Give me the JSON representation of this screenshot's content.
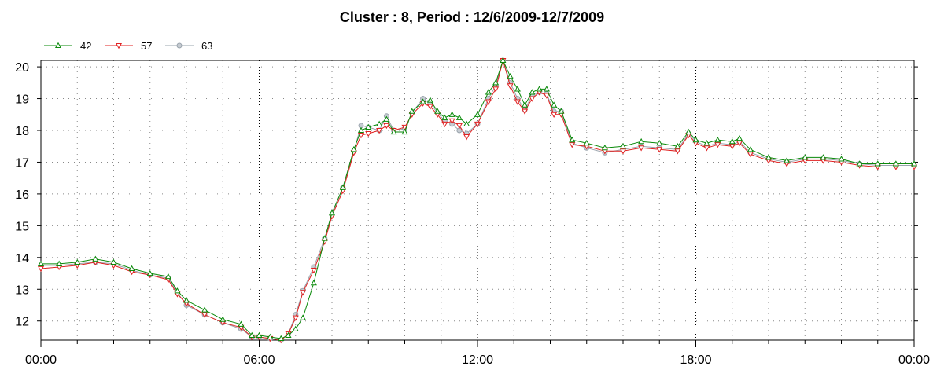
{
  "chart_data": {
    "type": "line",
    "title": "Cluster : 8, Period : 12/6/2009-12/7/2009",
    "xlabel": "",
    "ylabel": "",
    "xlim": [
      0,
      24
    ],
    "ylim": [
      11.4,
      20.2
    ],
    "x_ticks": [
      {
        "value": 0,
        "label": "00:00"
      },
      {
        "value": 6,
        "label": "06:00"
      },
      {
        "value": 12,
        "label": "12:00"
      },
      {
        "value": 18,
        "label": "18:00"
      },
      {
        "value": 24,
        "label": "00:00"
      }
    ],
    "y_ticks": [
      12,
      13,
      14,
      15,
      16,
      17,
      18,
      19,
      20
    ],
    "grid": "dotted",
    "legend_position": "top-left",
    "series": [
      {
        "name": "42",
        "color": "#0a8a0a",
        "marker": "triangle-up",
        "points": [
          [
            0,
            13.8
          ],
          [
            0.5,
            13.8
          ],
          [
            1,
            13.85
          ],
          [
            1.5,
            13.95
          ],
          [
            2,
            13.85
          ],
          [
            2.5,
            13.65
          ],
          [
            3,
            13.5
          ],
          [
            3.5,
            13.4
          ],
          [
            3.75,
            12.95
          ],
          [
            4,
            12.65
          ],
          [
            4.5,
            12.35
          ],
          [
            5,
            12.05
          ],
          [
            5.5,
            11.9
          ],
          [
            5.8,
            11.55
          ],
          [
            6,
            11.55
          ],
          [
            6.3,
            11.5
          ],
          [
            6.6,
            11.45
          ],
          [
            6.8,
            11.55
          ],
          [
            7,
            11.75
          ],
          [
            7.2,
            12.1
          ],
          [
            7.5,
            13.2
          ],
          [
            7.8,
            14.6
          ],
          [
            8,
            15.4
          ],
          [
            8.3,
            16.2
          ],
          [
            8.6,
            17.4
          ],
          [
            8.8,
            18.0
          ],
          [
            9,
            18.1
          ],
          [
            9.3,
            18.2
          ],
          [
            9.5,
            18.35
          ],
          [
            9.7,
            17.95
          ],
          [
            10,
            17.95
          ],
          [
            10.2,
            18.6
          ],
          [
            10.5,
            18.9
          ],
          [
            10.7,
            18.95
          ],
          [
            10.9,
            18.6
          ],
          [
            11.1,
            18.4
          ],
          [
            11.3,
            18.5
          ],
          [
            11.5,
            18.4
          ],
          [
            11.7,
            18.2
          ],
          [
            12,
            18.5
          ],
          [
            12.3,
            19.2
          ],
          [
            12.5,
            19.5
          ],
          [
            12.7,
            20.2
          ],
          [
            12.9,
            19.7
          ],
          [
            13.1,
            19.3
          ],
          [
            13.3,
            18.8
          ],
          [
            13.5,
            19.2
          ],
          [
            13.7,
            19.3
          ],
          [
            13.9,
            19.3
          ],
          [
            14.1,
            18.8
          ],
          [
            14.3,
            18.6
          ],
          [
            14.6,
            17.7
          ],
          [
            15,
            17.6
          ],
          [
            15.5,
            17.45
          ],
          [
            16,
            17.5
          ],
          [
            16.5,
            17.65
          ],
          [
            17,
            17.6
          ],
          [
            17.5,
            17.5
          ],
          [
            17.8,
            17.95
          ],
          [
            18,
            17.7
          ],
          [
            18.3,
            17.6
          ],
          [
            18.6,
            17.7
          ],
          [
            19,
            17.65
          ],
          [
            19.2,
            17.75
          ],
          [
            19.5,
            17.4
          ],
          [
            20,
            17.15
          ],
          [
            20.5,
            17.05
          ],
          [
            21,
            17.15
          ],
          [
            21.5,
            17.15
          ],
          [
            22,
            17.1
          ],
          [
            22.5,
            16.95
          ],
          [
            23,
            16.95
          ],
          [
            23.5,
            16.95
          ],
          [
            24,
            16.95
          ]
        ]
      },
      {
        "name": "57",
        "color": "#e02020",
        "marker": "triangle-down",
        "points": [
          [
            0,
            13.65
          ],
          [
            0.5,
            13.7
          ],
          [
            1,
            13.75
          ],
          [
            1.5,
            13.85
          ],
          [
            2,
            13.75
          ],
          [
            2.5,
            13.55
          ],
          [
            3,
            13.45
          ],
          [
            3.5,
            13.3
          ],
          [
            3.75,
            12.85
          ],
          [
            4,
            12.55
          ],
          [
            4.5,
            12.2
          ],
          [
            5,
            11.95
          ],
          [
            5.5,
            11.8
          ],
          [
            5.8,
            11.5
          ],
          [
            6,
            11.5
          ],
          [
            6.3,
            11.45
          ],
          [
            6.6,
            11.4
          ],
          [
            6.8,
            11.6
          ],
          [
            7,
            12.1
          ],
          [
            7.2,
            12.9
          ],
          [
            7.5,
            13.6
          ],
          [
            7.8,
            14.5
          ],
          [
            8,
            15.3
          ],
          [
            8.3,
            16.1
          ],
          [
            8.6,
            17.3
          ],
          [
            8.8,
            17.85
          ],
          [
            9,
            17.9
          ],
          [
            9.3,
            18.0
          ],
          [
            9.5,
            18.15
          ],
          [
            9.7,
            18.0
          ],
          [
            10,
            18.1
          ],
          [
            10.2,
            18.5
          ],
          [
            10.5,
            18.85
          ],
          [
            10.7,
            18.75
          ],
          [
            10.9,
            18.5
          ],
          [
            11.1,
            18.2
          ],
          [
            11.3,
            18.3
          ],
          [
            11.5,
            18.15
          ],
          [
            11.7,
            17.8
          ],
          [
            12,
            18.2
          ],
          [
            12.3,
            18.9
          ],
          [
            12.5,
            19.3
          ],
          [
            12.7,
            20.2
          ],
          [
            12.9,
            19.4
          ],
          [
            13.1,
            18.9
          ],
          [
            13.3,
            18.6
          ],
          [
            13.5,
            19.0
          ],
          [
            13.7,
            19.2
          ],
          [
            13.9,
            19.1
          ],
          [
            14.1,
            18.5
          ],
          [
            14.3,
            18.5
          ],
          [
            14.6,
            17.55
          ],
          [
            15,
            17.5
          ],
          [
            15.5,
            17.35
          ],
          [
            16,
            17.35
          ],
          [
            16.5,
            17.45
          ],
          [
            17,
            17.4
          ],
          [
            17.5,
            17.35
          ],
          [
            17.8,
            17.85
          ],
          [
            18,
            17.6
          ],
          [
            18.3,
            17.45
          ],
          [
            18.6,
            17.55
          ],
          [
            19,
            17.5
          ],
          [
            19.2,
            17.6
          ],
          [
            19.5,
            17.25
          ],
          [
            20,
            17.05
          ],
          [
            20.5,
            16.95
          ],
          [
            21,
            17.05
          ],
          [
            21.5,
            17.05
          ],
          [
            22,
            17.0
          ],
          [
            22.5,
            16.9
          ],
          [
            23,
            16.85
          ],
          [
            23.5,
            16.85
          ],
          [
            24,
            16.85
          ]
        ]
      },
      {
        "name": "63",
        "color": "#9aa4ad",
        "marker": "circle",
        "points": [
          [
            0,
            13.75
          ],
          [
            0.5,
            13.75
          ],
          [
            1,
            13.8
          ],
          [
            1.5,
            13.85
          ],
          [
            2,
            13.8
          ],
          [
            2.5,
            13.6
          ],
          [
            3,
            13.45
          ],
          [
            3.5,
            13.35
          ],
          [
            3.75,
            12.9
          ],
          [
            4,
            12.5
          ],
          [
            4.5,
            12.2
          ],
          [
            5,
            11.95
          ],
          [
            5.5,
            11.75
          ],
          [
            5.8,
            11.5
          ],
          [
            6,
            11.5
          ],
          [
            6.3,
            11.45
          ],
          [
            6.6,
            11.4
          ],
          [
            6.8,
            11.6
          ],
          [
            7,
            12.2
          ],
          [
            7.2,
            12.95
          ],
          [
            7.5,
            13.7
          ],
          [
            7.8,
            14.6
          ],
          [
            8,
            15.35
          ],
          [
            8.3,
            16.2
          ],
          [
            8.6,
            17.35
          ],
          [
            8.8,
            18.15
          ],
          [
            9,
            18.1
          ],
          [
            9.3,
            18.0
          ],
          [
            9.5,
            18.45
          ],
          [
            9.7,
            18.0
          ],
          [
            10,
            18.05
          ],
          [
            10.2,
            18.55
          ],
          [
            10.5,
            19.0
          ],
          [
            10.7,
            18.85
          ],
          [
            10.9,
            18.55
          ],
          [
            11.1,
            18.3
          ],
          [
            11.3,
            18.2
          ],
          [
            11.5,
            18.0
          ],
          [
            11.7,
            17.9
          ],
          [
            12,
            18.2
          ],
          [
            12.3,
            19.0
          ],
          [
            12.5,
            19.4
          ],
          [
            12.7,
            20.2
          ],
          [
            12.9,
            19.5
          ],
          [
            13.1,
            19.0
          ],
          [
            13.3,
            18.65
          ],
          [
            13.5,
            19.1
          ],
          [
            13.7,
            19.2
          ],
          [
            13.9,
            19.15
          ],
          [
            14.1,
            18.6
          ],
          [
            14.3,
            18.6
          ],
          [
            14.6,
            17.6
          ],
          [
            15,
            17.45
          ],
          [
            15.5,
            17.3
          ],
          [
            16,
            17.4
          ],
          [
            16.5,
            17.5
          ],
          [
            17,
            17.45
          ],
          [
            17.5,
            17.4
          ],
          [
            17.8,
            17.9
          ],
          [
            18,
            17.65
          ],
          [
            18.3,
            17.5
          ],
          [
            18.6,
            17.6
          ],
          [
            19,
            17.55
          ],
          [
            19.2,
            17.65
          ],
          [
            19.5,
            17.3
          ],
          [
            20,
            17.1
          ],
          [
            20.5,
            17.0
          ],
          [
            21,
            17.1
          ],
          [
            21.5,
            17.1
          ],
          [
            22,
            17.05
          ],
          [
            22.5,
            16.95
          ],
          [
            23,
            16.9
          ],
          [
            23.5,
            16.9
          ],
          [
            24,
            16.9
          ]
        ]
      }
    ]
  }
}
